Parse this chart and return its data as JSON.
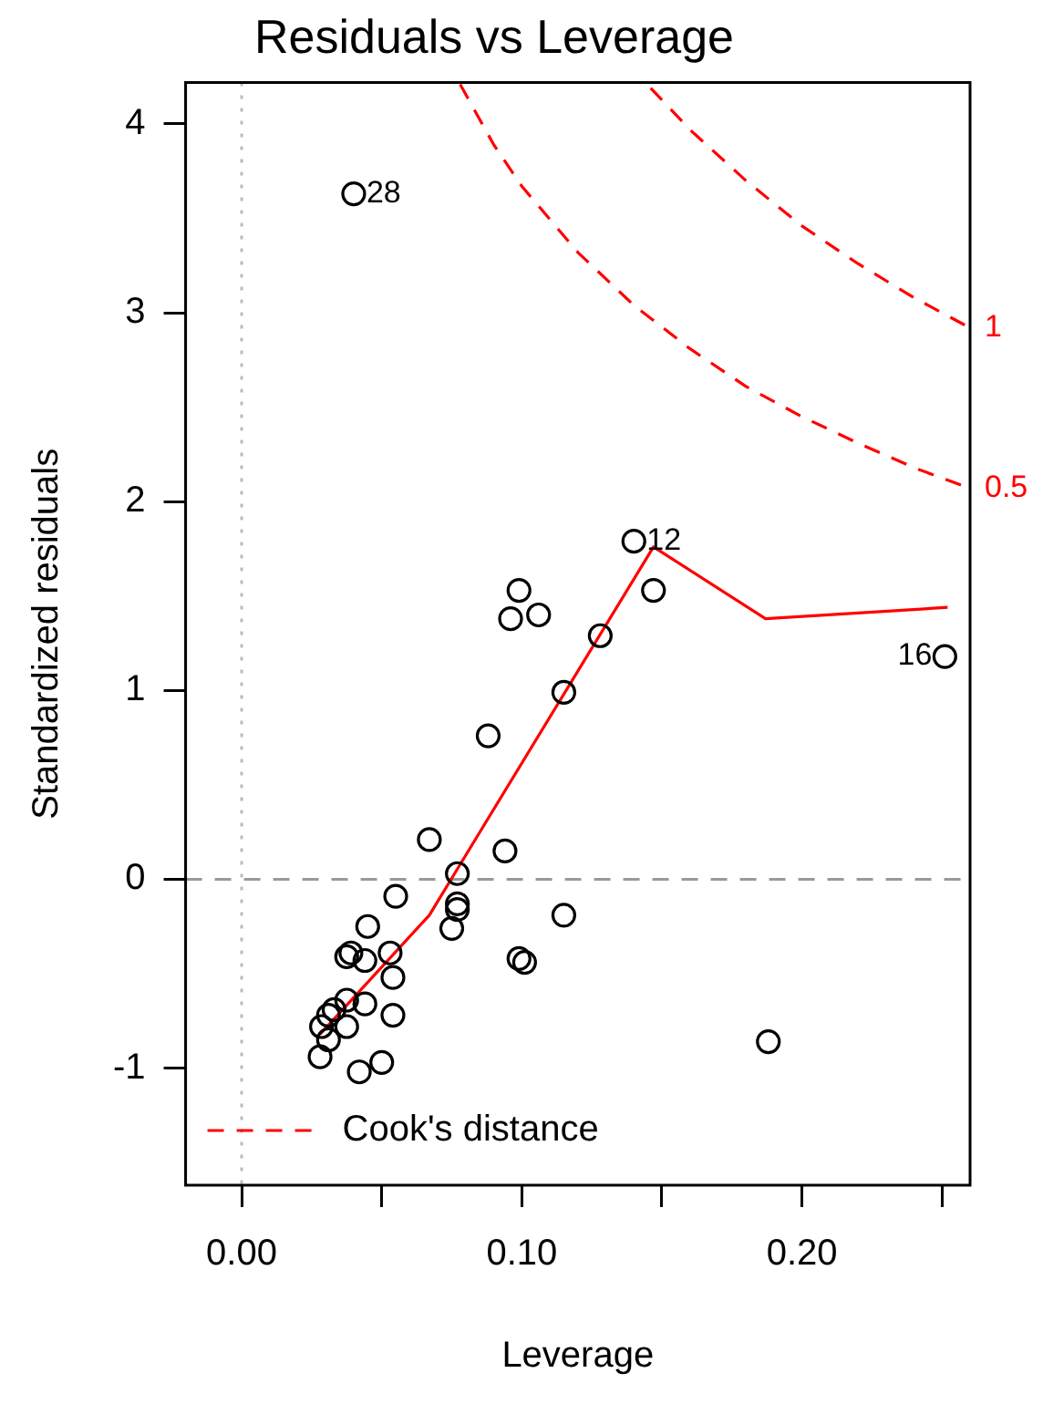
{
  "chart_data": {
    "type": "scatter",
    "title": "Residuals vs Leverage",
    "xlabel": "Leverage",
    "ylabel": "Standardized residuals",
    "xlim": [
      -0.02,
      0.26
    ],
    "ylim": [
      -1.62,
      4.22
    ],
    "xticks": [
      {
        "value": 0,
        "label": "0.00"
      },
      {
        "value": 0.05,
        "label": null
      },
      {
        "value": 0.1,
        "label": "0.10"
      },
      {
        "value": 0.15,
        "label": null
      },
      {
        "value": 0.2,
        "label": "0.20"
      },
      {
        "value": 0.25,
        "label": null
      }
    ],
    "yticks": [
      -1,
      0,
      1,
      2,
      3,
      4
    ],
    "grid": false,
    "marker": "circle",
    "legend": "bottom left",
    "series": [
      {
        "type": "scatter",
        "color": "#000000",
        "x": [
          0.04,
          0.14,
          0.251,
          0.147,
          0.099,
          0.096,
          0.106,
          0.128,
          0.115,
          0.088,
          0.067,
          0.094,
          0.077,
          0.055,
          0.077,
          0.077,
          0.075,
          0.115,
          0.045,
          0.039,
          0.0375,
          0.044,
          0.053,
          0.099,
          0.101,
          0.054,
          0.044,
          0.054,
          0.0375,
          0.033,
          0.031,
          0.0375,
          0.0285,
          0.031,
          0.028,
          0.042,
          0.05,
          0.188
        ],
        "values": [
          3.63,
          1.79,
          1.18,
          1.53,
          1.53,
          1.38,
          1.4,
          1.29,
          0.99,
          0.76,
          0.21,
          0.15,
          0.03,
          -0.09,
          -0.13,
          -0.16,
          -0.26,
          -0.19,
          -0.25,
          -0.39,
          -0.41,
          -0.43,
          -0.39,
          -0.42,
          -0.44,
          -0.52,
          -0.66,
          -0.72,
          -0.64,
          -0.69,
          -0.72,
          -0.78,
          -0.78,
          -0.85,
          -0.94,
          -1.02,
          -0.97,
          -0.86
        ]
      },
      {
        "type": "line",
        "color": "#ff0000",
        "marker": "none",
        "line_style": "solid",
        "x": [
          0.028,
          0.067,
          0.076,
          0.147,
          0.187,
          0.252
        ],
        "values": [
          -0.82,
          -0.19,
          0.03,
          1.76,
          1.38,
          1.44
        ]
      },
      {
        "type": "line",
        "name": "Cook's distance",
        "color": "#ff0000",
        "marker": "none",
        "line_style": "dashed",
        "x": [
          0.078,
          0.09,
          0.1,
          0.12,
          0.14,
          0.16,
          0.18,
          0.2,
          0.22,
          0.24,
          0.26
        ],
        "values": [
          4.21,
          3.89,
          3.67,
          3.32,
          3.04,
          2.81,
          2.61,
          2.45,
          2.31,
          2.18,
          2.07
        ]
      },
      {
        "type": "line",
        "color": "#ff0000",
        "marker": "none",
        "line_style": "dashed",
        "x": [
          0.146,
          0.16,
          0.18,
          0.2,
          0.22,
          0.24,
          0.26
        ],
        "values": [
          4.19,
          3.97,
          3.7,
          3.46,
          3.26,
          3.08,
          2.92
        ]
      }
    ],
    "ref_lines": [
      {
        "axis": "y",
        "value": 0,
        "color": "#999999",
        "line_style": "dashed"
      },
      {
        "axis": "x",
        "value": 0,
        "color": "#bbbbbb",
        "line_style": "dotted"
      }
    ],
    "annotations": [
      {
        "text": "28",
        "x": 0.04,
        "y": 3.63
      },
      {
        "text": "12",
        "x": 0.14,
        "y": 1.79
      },
      {
        "text": "16",
        "x": 0.251,
        "y": 1.18
      },
      {
        "text": "1",
        "x": 0.26,
        "y": 2.92
      },
      {
        "text": "0.5",
        "x": 0.26,
        "y": 2.07
      }
    ]
  }
}
